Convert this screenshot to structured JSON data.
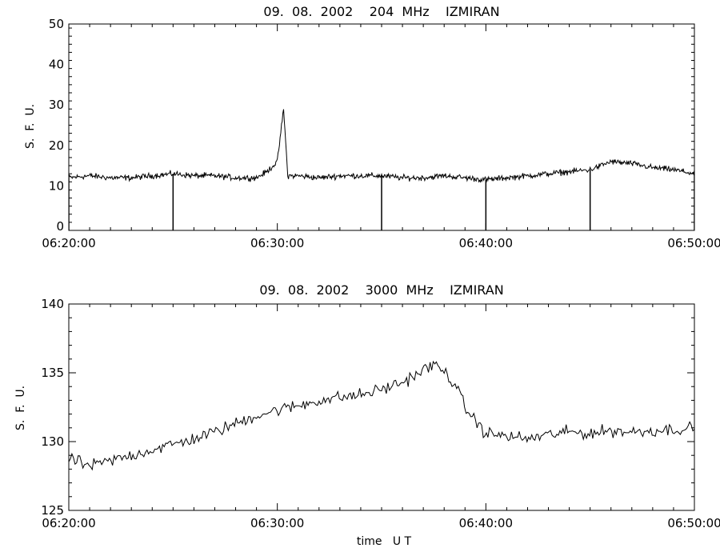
{
  "chart_data": [
    {
      "type": "line",
      "title": "09.  08.  2002    204  MHz    IZMIRAN",
      "xlabel": "",
      "ylabel": "S.  F.  U.",
      "x_range": [
        "06:20:00",
        "06:50:00"
      ],
      "xlim_minutes": [
        0,
        30
      ],
      "ylim": [
        -1,
        50
      ],
      "x_ticks": [
        "06:20:00",
        "06:30:00",
        "06:40:00",
        "06:50:00"
      ],
      "y_ticks": [
        0,
        10,
        20,
        30,
        40,
        50
      ],
      "grid": false,
      "series": [
        {
          "minute": [
            0,
            1,
            2,
            3,
            4,
            5,
            6,
            7,
            8,
            9,
            9.5,
            10,
            10.3,
            10.5,
            11,
            12,
            13,
            14,
            15,
            16,
            17,
            18,
            19,
            20,
            21,
            22,
            23,
            24,
            25,
            26,
            27,
            28,
            29,
            30
          ],
          "sfu": [
            12,
            12.5,
            12,
            12,
            12.5,
            13,
            12.5,
            12.5,
            12,
            12,
            13.5,
            16,
            29,
            12.5,
            12.5,
            12,
            12.5,
            12.5,
            12.5,
            12,
            12,
            12.5,
            12,
            11.5,
            12,
            12.5,
            13,
            13.5,
            14,
            16,
            15.5,
            14.5,
            14,
            13
          ]
        }
      ],
      "dropouts_minute": [
        0,
        5,
        15,
        20,
        25,
        30
      ],
      "dropout_level_sfu": -1
    },
    {
      "type": "line",
      "title": "09.  08.  2002    3000  MHz    IZMIRAN",
      "xlabel": "time   U T",
      "ylabel": "S.  F.  U.",
      "x_range": [
        "06:20:00",
        "06:50:00"
      ],
      "xlim_minutes": [
        0,
        30
      ],
      "ylim": [
        125,
        140
      ],
      "x_ticks": [
        "06:20:00",
        "06:30:00",
        "06:40:00",
        "06:50:00"
      ],
      "y_ticks": [
        125,
        130,
        135,
        140
      ],
      "grid": false,
      "series": [
        {
          "minute": [
            0,
            1,
            2,
            3,
            4,
            5,
            6,
            7,
            8,
            9,
            10,
            11,
            12,
            13,
            14,
            15,
            16,
            17,
            17.5,
            18,
            18.5,
            19,
            19.5,
            20,
            21,
            22,
            23,
            24,
            25,
            26,
            27,
            28,
            29,
            30
          ],
          "sfu": [
            128.8,
            128.2,
            128.6,
            129,
            129.4,
            129.8,
            130.2,
            130.7,
            131.3,
            131.9,
            132.3,
            132.6,
            133,
            133.2,
            133.4,
            133.8,
            134.3,
            135.2,
            135.6,
            135.1,
            134.2,
            132.5,
            131.5,
            130.6,
            130.4,
            130.2,
            130.5,
            130.7,
            130.6,
            130.8,
            130.7,
            130.8,
            130.9,
            131
          ]
        }
      ]
    }
  ]
}
